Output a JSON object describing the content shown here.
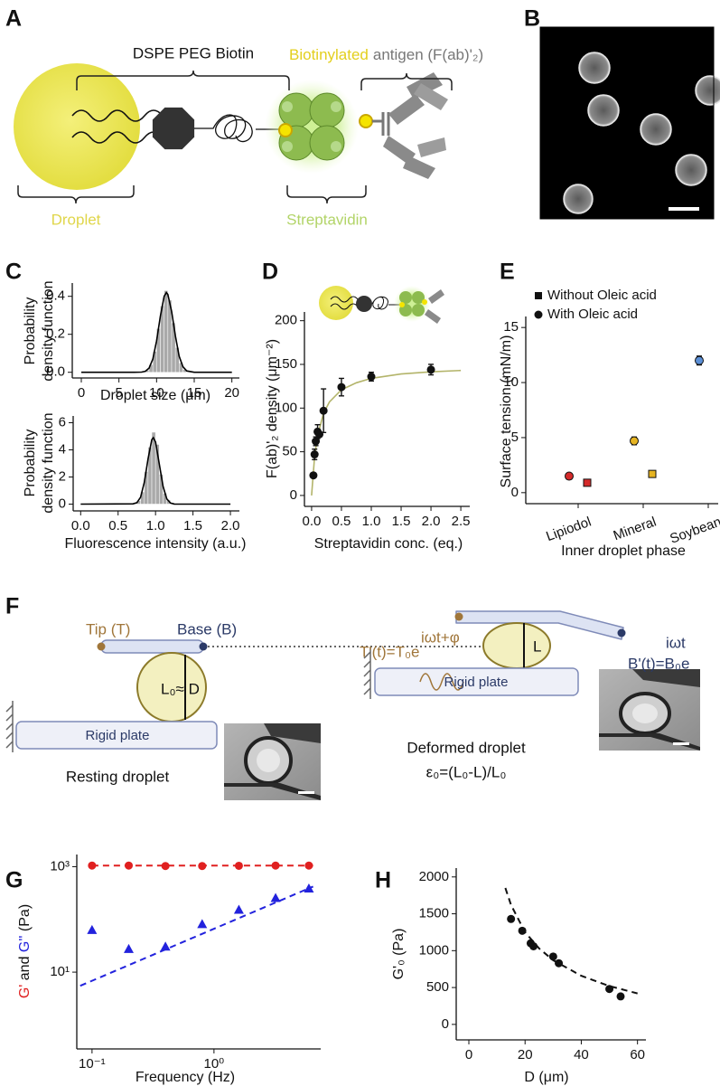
{
  "panels": [
    "A",
    "B",
    "C",
    "D",
    "E",
    "F",
    "G",
    "H"
  ],
  "diagram_a": {
    "linker": "DSPE PEG Biotin",
    "biotinylated": "Biotinylated",
    "antigen": "antigen (F(ab)'₂)",
    "droplet": "Droplet",
    "streptavidin": "Streptavidin"
  },
  "diagram_f": {
    "tip": "Tip (T)",
    "base": "Base (B)",
    "rest_gap": "L₀≈ D",
    "plates": [
      "Rigid plate",
      "Rigid plate"
    ],
    "resting": "Resting droplet",
    "deformed": "Deformed droplet",
    "strain": "ε₀=(L₀-L)/L₀",
    "tip_signal": "T'(t)=T₀e",
    "tip_exponent": "iωt+φ",
    "gap": "L",
    "base_signal": "B'(t)=B₀e",
    "base_exponent": "iωt"
  },
  "chart_data": [
    {
      "type": "histogram",
      "xlabel": "Droplet size (μm)",
      "ylabel": [
        "Probability",
        "density function"
      ],
      "xlim": [
        -1.2,
        21
      ],
      "ylim": [
        -0.03,
        0.47
      ],
      "xticks": [
        0,
        5,
        10,
        15,
        20
      ],
      "yticks": [
        {
          "value": 0,
          "label": "0.0"
        },
        {
          "value": 0.2,
          "label": "0.2"
        },
        {
          "value": 0.4,
          "label": "0.4"
        }
      ],
      "bins": [
        8,
        8.5,
        9,
        9.5,
        10,
        10.5,
        11,
        11.5,
        12,
        12.5,
        13,
        13.5,
        14,
        14.5
      ],
      "counts": [
        0.002,
        0.011,
        0.04,
        0.11,
        0.23,
        0.35,
        0.43,
        0.38,
        0.26,
        0.13,
        0.05,
        0.015,
        0.003
      ],
      "color": "#a9a9a9",
      "fits": [
        {
          "x": [
            0,
            7,
            8,
            8.5,
            9,
            9.5,
            10,
            10.5,
            11,
            11.3,
            11.5,
            12,
            12.5,
            13,
            13.5,
            14,
            15,
            20
          ],
          "values": [
            0,
            0,
            0.001,
            0.005,
            0.022,
            0.07,
            0.165,
            0.295,
            0.4,
            0.42,
            0.41,
            0.32,
            0.19,
            0.085,
            0.029,
            0.007,
            0,
            0
          ],
          "color": "#000000"
        }
      ]
    },
    {
      "type": "histogram",
      "xlabel": "Fluorescence intensity (a.u.)",
      "ylabel": [
        "Probability",
        "density function"
      ],
      "xlim": [
        -0.1,
        2.12
      ],
      "ylim": [
        -0.5,
        6.5
      ],
      "xticks": [
        {
          "value": 0,
          "label": "0.0"
        },
        {
          "value": 0.5,
          "label": "0.5"
        },
        {
          "value": 1,
          "label": "1.0"
        },
        {
          "value": 1.5,
          "label": "1.5"
        },
        {
          "value": 2,
          "label": "2.0"
        }
      ],
      "yticks": [
        0,
        2,
        4,
        6
      ],
      "bins": [
        0.7,
        0.75,
        0.8,
        0.85,
        0.9,
        0.95,
        1.0,
        1.05,
        1.1,
        1.15,
        1.2,
        1.25,
        1.3
      ],
      "counts": [
        0.05,
        0.25,
        0.9,
        2.4,
        4.2,
        5.3,
        4.4,
        2.2,
        0.8,
        0.3,
        0.1,
        0.05
      ],
      "color": "#a9a9a9",
      "fits": [
        {
          "x": [
            0,
            0.7,
            0.75,
            0.8,
            0.85,
            0.9,
            0.95,
            0.97,
            1.0,
            1.05,
            1.1,
            1.15,
            1.2,
            1.25,
            2.0
          ],
          "values": [
            0,
            0.02,
            0.11,
            0.51,
            1.59,
            3.34,
            4.75,
            4.9,
            4.57,
            2.97,
            1.31,
            0.39,
            0.08,
            0.01,
            0
          ],
          "color": "#000000"
        }
      ]
    },
    {
      "type": "scatter",
      "xlabel": "Streptavidin conc. (eq.)",
      "ylabel": "F(ab)'₂ density (μm⁻²)",
      "xlim": [
        -0.12,
        2.65
      ],
      "ylim": [
        -12.5,
        210
      ],
      "xticks": [
        {
          "value": 0,
          "label": "0.0"
        },
        {
          "value": 0.5,
          "label": "0.5"
        },
        {
          "value": 1,
          "label": "1.0"
        },
        {
          "value": 1.5,
          "label": "1.5"
        },
        {
          "value": 2,
          "label": "2.0"
        },
        {
          "value": 2.5,
          "label": "2.5"
        }
      ],
      "yticks": [
        0,
        50,
        100,
        150,
        200
      ],
      "series": [
        {
          "color": "#111111",
          "marker": "circle",
          "x": [
            0.03,
            0.05,
            0.07,
            0.1,
            0.13,
            0.2,
            0.5,
            1.0,
            2.0
          ],
          "values": [
            23,
            47,
            62,
            73,
            70,
            97,
            124,
            136,
            144
          ],
          "errors": [
            null,
            6,
            5,
            8,
            null,
            25,
            10,
            5,
            6
          ]
        }
      ],
      "fits": [
        {
          "x": [
            0,
            0.05,
            0.1,
            0.2,
            0.3,
            0.5,
            0.75,
            1,
            1.5,
            2,
            2.5
          ],
          "values": [
            0,
            44,
            68,
            94,
            107,
            121,
            129,
            134,
            139,
            141.5,
            143
          ],
          "color": "#b3b46a"
        }
      ]
    },
    {
      "type": "scatter",
      "xlabel": "Inner droplet phase",
      "ylabel": "Surface tension (mN/m)",
      "categories": [
        "Lipiodol",
        "Mineral",
        "Soybean"
      ],
      "category_colors": [
        "#d42a2a",
        "#e6b422",
        "#5b8fd6"
      ],
      "ylim": [
        -1,
        16
      ],
      "yticks": [
        0,
        5,
        10,
        15
      ],
      "series": [
        {
          "name": "Without Oleic acid",
          "marker": "square",
          "values": [
            0.9,
            1.7,
            null
          ],
          "errors": [
            0.15,
            0.2,
            null
          ]
        },
        {
          "name": "With Oleic acid",
          "marker": "circle",
          "values": [
            1.5,
            4.7,
            12.0
          ],
          "errors": [
            0.1,
            0.35,
            0.4
          ]
        }
      ]
    },
    {
      "type": "scatter",
      "xlabel": "Frequency (Hz)",
      "ylabel": [
        {
          "text": "G'",
          "color": "#e02020"
        },
        {
          "text": " and "
        },
        {
          "text": "G''",
          "color": "#2222dd"
        },
        {
          "text": " (Pa)"
        }
      ],
      "xlog": true,
      "ylog": true,
      "xlim": [
        0.075,
        7.5
      ],
      "ylim": [
        0.35,
        1700
      ],
      "xticks": [
        {
          "value": 0.1,
          "label": "10⁻¹"
        },
        {
          "value": 1,
          "label": "10⁰"
        }
      ],
      "yticks": [
        {
          "value": 10,
          "label": "10¹"
        },
        {
          "value": 1000,
          "label": "10³"
        }
      ],
      "series": [
        {
          "color": "#e02020",
          "marker": "circle",
          "x": [
            0.1,
            0.2,
            0.4,
            0.8,
            1.6,
            3.2,
            6
          ],
          "values": [
            1050,
            1050,
            1030,
            1030,
            1040,
            1050,
            1050
          ]
        },
        {
          "color": "#2222dd",
          "marker": "triangle",
          "x": [
            0.1,
            0.2,
            0.4,
            0.8,
            1.6,
            3.2,
            6
          ],
          "values": [
            62,
            27,
            30,
            80,
            150,
            250,
            380
          ]
        }
      ],
      "fits": [
        {
          "x": [
            0.1,
            6.5
          ],
          "values": [
            1050,
            1050
          ],
          "color": "#e02020",
          "dash": true
        },
        {
          "x": [
            0.08,
            6.5
          ],
          "values": [
            5.5,
            420
          ],
          "color": "#2222dd",
          "dash": true
        }
      ]
    },
    {
      "type": "scatter",
      "xlabel": "D (μm)",
      "ylabel": "G'₀ (Pa)",
      "xlim": [
        -4.5,
        63
      ],
      "ylim": [
        -210,
        2120
      ],
      "xticks": [
        0,
        20,
        40,
        60
      ],
      "yticks": [
        0,
        500,
        1000,
        1500,
        2000
      ],
      "series": [
        {
          "color": "#111111",
          "marker": "circle",
          "x": [
            15,
            19,
            22,
            23,
            30,
            32,
            50,
            54
          ],
          "values": [
            1430,
            1270,
            1100,
            1060,
            920,
            830,
            480,
            380
          ]
        }
      ],
      "fits": [
        {
          "x": [
            13,
            15,
            20,
            25,
            30,
            40,
            50,
            60
          ],
          "values": [
            1850,
            1620,
            1250,
            1030,
            870,
            660,
            520,
            420
          ],
          "color": "#111111",
          "dash": true
        }
      ]
    }
  ]
}
